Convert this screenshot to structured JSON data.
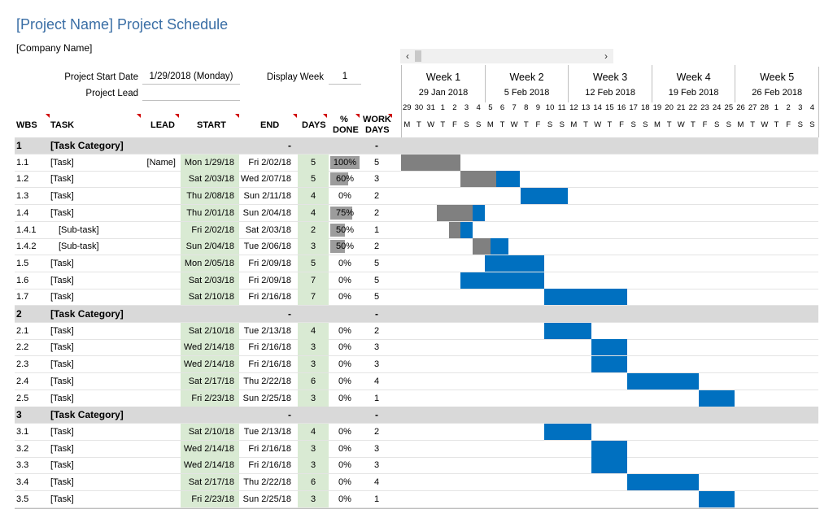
{
  "title": "[Project Name] Project Schedule",
  "company": "[Company Name]",
  "project_start_label": "Project Start Date",
  "project_start_value": "1/29/2018 (Monday)",
  "project_lead_label": "Project Lead",
  "display_week_label": "Display Week",
  "display_week_value": "1",
  "scroll_left": "‹",
  "scroll_right": "›",
  "headers": {
    "wbs": "WBS",
    "task": "TASK",
    "lead": "LEAD",
    "start": "START",
    "end": "END",
    "days": "DAYS",
    "done_1": "%",
    "done_2": "DONE",
    "work_1": "WORK",
    "work_2": "DAYS"
  },
  "weeks": [
    {
      "name": "Week 1",
      "date": "29 Jan 2018"
    },
    {
      "name": "Week 2",
      "date": "5 Feb 2018"
    },
    {
      "name": "Week 3",
      "date": "12 Feb 2018"
    },
    {
      "name": "Week 4",
      "date": "19 Feb 2018"
    },
    {
      "name": "Week 5",
      "date": "26 Feb 2018"
    }
  ],
  "day_numbers": [
    "29",
    "30",
    "31",
    "1",
    "2",
    "3",
    "4",
    "5",
    "6",
    "7",
    "8",
    "9",
    "10",
    "11",
    "12",
    "13",
    "14",
    "15",
    "16",
    "17",
    "18",
    "19",
    "20",
    "21",
    "22",
    "23",
    "24",
    "25",
    "26",
    "27",
    "28",
    "1",
    "2",
    "3",
    "4"
  ],
  "day_letters": [
    "M",
    "T",
    "W",
    "T",
    "F",
    "S",
    "S"
  ],
  "colors": {
    "bar": "#0070c0",
    "done": "#808080",
    "category_bg": "#d9d9d9",
    "start_bg": "#d9ead3",
    "title": "#3a6ea5"
  },
  "rows": [
    {
      "type": "cat",
      "wbs": "1",
      "task": "[Task Category]",
      "lead": "",
      "start": "",
      "end": "-",
      "days": "",
      "done": "",
      "work": "-"
    },
    {
      "type": "task",
      "wbs": "1.1",
      "task": "[Task]",
      "lead": "[Name]",
      "start": "Mon 1/29/18",
      "end": "Fri 2/02/18",
      "days": "5",
      "done": "100%",
      "pct": 1.0,
      "work": "5",
      "bar_start": 0,
      "bar_len": 5
    },
    {
      "type": "task",
      "wbs": "1.2",
      "task": "[Task]",
      "lead": "",
      "start": "Sat 2/03/18",
      "end": "Wed 2/07/18",
      "days": "5",
      "done": "60%",
      "pct": 0.6,
      "work": "3",
      "bar_start": 5,
      "bar_len": 5
    },
    {
      "type": "task",
      "wbs": "1.3",
      "task": "[Task]",
      "lead": "",
      "start": "Thu 2/08/18",
      "end": "Sun 2/11/18",
      "days": "4",
      "done": "0%",
      "pct": 0,
      "work": "2",
      "bar_start": 10,
      "bar_len": 4
    },
    {
      "type": "task",
      "wbs": "1.4",
      "task": "[Task]",
      "lead": "",
      "start": "Thu 2/01/18",
      "end": "Sun 2/04/18",
      "days": "4",
      "done": "75%",
      "pct": 0.75,
      "work": "2",
      "bar_start": 3,
      "bar_len": 4
    },
    {
      "type": "task",
      "wbs": "1.4.1",
      "task": "[Sub-task]",
      "sub": true,
      "lead": "",
      "start": "Fri 2/02/18",
      "end": "Sat 2/03/18",
      "days": "2",
      "done": "50%",
      "pct": 0.5,
      "work": "1",
      "bar_start": 4,
      "bar_len": 2
    },
    {
      "type": "task",
      "wbs": "1.4.2",
      "task": "[Sub-task]",
      "sub": true,
      "lead": "",
      "start": "Sun 2/04/18",
      "end": "Tue 2/06/18",
      "days": "3",
      "done": "50%",
      "pct": 0.5,
      "work": "2",
      "bar_start": 6,
      "bar_len": 3
    },
    {
      "type": "task",
      "wbs": "1.5",
      "task": "[Task]",
      "lead": "",
      "start": "Mon 2/05/18",
      "end": "Fri 2/09/18",
      "days": "5",
      "done": "0%",
      "pct": 0,
      "work": "5",
      "bar_start": 7,
      "bar_len": 5
    },
    {
      "type": "task",
      "wbs": "1.6",
      "task": "[Task]",
      "lead": "",
      "start": "Sat 2/03/18",
      "end": "Fri 2/09/18",
      "days": "7",
      "done": "0%",
      "pct": 0,
      "work": "5",
      "bar_start": 5,
      "bar_len": 7
    },
    {
      "type": "task",
      "wbs": "1.7",
      "task": "[Task]",
      "lead": "",
      "start": "Sat 2/10/18",
      "end": "Fri 2/16/18",
      "days": "7",
      "done": "0%",
      "pct": 0,
      "work": "5",
      "bar_start": 12,
      "bar_len": 7
    },
    {
      "type": "cat",
      "wbs": "2",
      "task": "[Task Category]",
      "lead": "",
      "start": "",
      "end": "-",
      "days": "",
      "done": "",
      "work": "-"
    },
    {
      "type": "task",
      "wbs": "2.1",
      "task": "[Task]",
      "lead": "",
      "start": "Sat 2/10/18",
      "end": "Tue 2/13/18",
      "days": "4",
      "done": "0%",
      "pct": 0,
      "work": "2",
      "bar_start": 12,
      "bar_len": 4
    },
    {
      "type": "task",
      "wbs": "2.2",
      "task": "[Task]",
      "lead": "",
      "start": "Wed 2/14/18",
      "end": "Fri 2/16/18",
      "days": "3",
      "done": "0%",
      "pct": 0,
      "work": "3",
      "bar_start": 16,
      "bar_len": 3
    },
    {
      "type": "task",
      "wbs": "2.3",
      "task": "[Task]",
      "lead": "",
      "start": "Wed 2/14/18",
      "end": "Fri 2/16/18",
      "days": "3",
      "done": "0%",
      "pct": 0,
      "work": "3",
      "bar_start": 16,
      "bar_len": 3
    },
    {
      "type": "task",
      "wbs": "2.4",
      "task": "[Task]",
      "lead": "",
      "start": "Sat 2/17/18",
      "end": "Thu 2/22/18",
      "days": "6",
      "done": "0%",
      "pct": 0,
      "work": "4",
      "bar_start": 19,
      "bar_len": 6
    },
    {
      "type": "task",
      "wbs": "2.5",
      "task": "[Task]",
      "lead": "",
      "start": "Fri 2/23/18",
      "end": "Sun 2/25/18",
      "days": "3",
      "done": "0%",
      "pct": 0,
      "work": "1",
      "bar_start": 25,
      "bar_len": 3
    },
    {
      "type": "cat",
      "wbs": "3",
      "task": "[Task Category]",
      "lead": "",
      "start": "",
      "end": "-",
      "days": "",
      "done": "",
      "work": "-"
    },
    {
      "type": "task",
      "wbs": "3.1",
      "task": "[Task]",
      "lead": "",
      "start": "Sat 2/10/18",
      "end": "Tue 2/13/18",
      "days": "4",
      "done": "0%",
      "pct": 0,
      "work": "2",
      "bar_start": 12,
      "bar_len": 4
    },
    {
      "type": "task",
      "wbs": "3.2",
      "task": "[Task]",
      "lead": "",
      "start": "Wed 2/14/18",
      "end": "Fri 2/16/18",
      "days": "3",
      "done": "0%",
      "pct": 0,
      "work": "3",
      "bar_start": 16,
      "bar_len": 3
    },
    {
      "type": "task",
      "wbs": "3.3",
      "task": "[Task]",
      "lead": "",
      "start": "Wed 2/14/18",
      "end": "Fri 2/16/18",
      "days": "3",
      "done": "0%",
      "pct": 0,
      "work": "3",
      "bar_start": 16,
      "bar_len": 3
    },
    {
      "type": "task",
      "wbs": "3.4",
      "task": "[Task]",
      "lead": "",
      "start": "Sat 2/17/18",
      "end": "Thu 2/22/18",
      "days": "6",
      "done": "0%",
      "pct": 0,
      "work": "4",
      "bar_start": 19,
      "bar_len": 6
    },
    {
      "type": "task",
      "wbs": "3.5",
      "task": "[Task]",
      "lead": "",
      "start": "Fri 2/23/18",
      "end": "Sun 2/25/18",
      "days": "3",
      "done": "0%",
      "pct": 0,
      "work": "1",
      "bar_start": 25,
      "bar_len": 3
    }
  ]
}
